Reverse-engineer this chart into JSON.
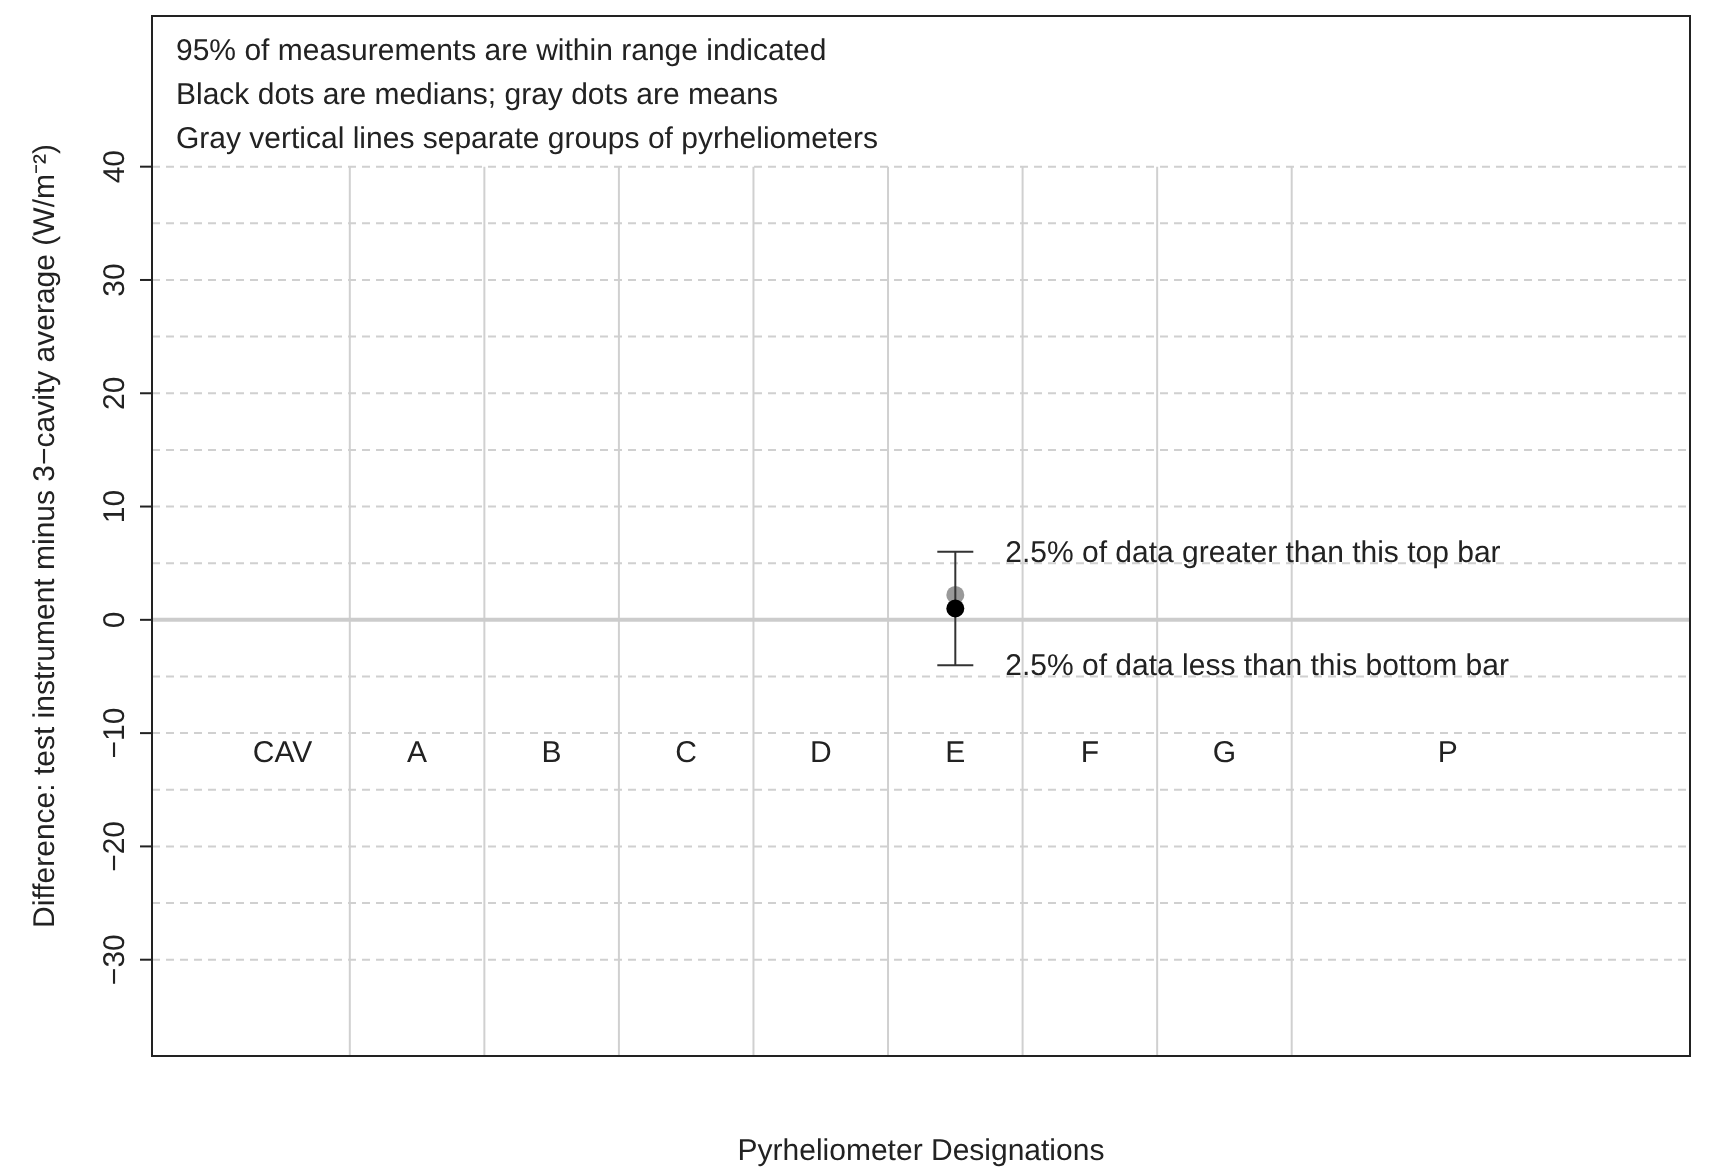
{
  "chart_data": {
    "type": "scatter",
    "xlabel": "Pyrheliometer Designations",
    "ylabel": "Difference: test instrument minus 3−cavity average (W/m⁻²)",
    "categories": [
      "CAV",
      "A",
      "B",
      "C",
      "D",
      "E",
      "F",
      "G",
      "P"
    ],
    "series": [
      {
        "color": "#999999",
        "values": [
          null,
          null,
          null,
          null,
          null,
          2.2,
          null,
          null,
          null
        ]
      },
      {
        "color": "#000000",
        "values": [
          null,
          null,
          null,
          null,
          null,
          1,
          null,
          null,
          null
        ],
        "errors": [
          null,
          null,
          null,
          null,
          null,
          [
            -4,
            6
          ],
          null,
          null,
          null
        ]
      }
    ],
    "ylim": [
      -38.5,
      53.3
    ],
    "yticks": [
      -30,
      {
        "value": -25,
        "label": null
      },
      -20,
      {
        "value": -15,
        "label": null
      },
      -10,
      {
        "value": -5,
        "label": null
      },
      0,
      {
        "value": 5,
        "label": null
      },
      10,
      {
        "value": 15,
        "label": null
      },
      20,
      {
        "value": 25,
        "label": null
      },
      30,
      {
        "value": 35,
        "label": null
      },
      40
    ],
    "grid": true,
    "marker": "circle",
    "ref_lines": [
      {
        "axis": "y",
        "value": 0,
        "color": "#cccccc"
      }
    ],
    "annotations": [
      "95% of measurements are within range indicated",
      "Black dots are medians; gray dots are means",
      "Gray vertical lines separate groups of pyrheliometers",
      {
        "text": "2.5% of data greater than this top bar",
        "x": "E",
        "y": 6
      },
      {
        "text": "2.5% of data less than this bottom bar",
        "x": "E",
        "y": -4
      }
    ]
  }
}
